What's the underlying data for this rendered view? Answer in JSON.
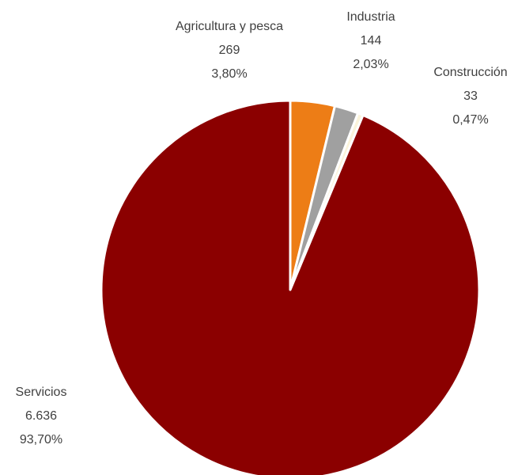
{
  "chart_data": {
    "type": "pie",
    "title": "",
    "start_angle": "12 o'clock, clockwise",
    "slices": [
      {
        "label": "Agricultura y pesca",
        "value": 269,
        "value_text": "269",
        "percent_text": "3,80%",
        "color": "#ED7D16"
      },
      {
        "label": "Industria",
        "value": 144,
        "value_text": "144",
        "percent_text": "2,03%",
        "color": "#A0A0A0"
      },
      {
        "label": "Construcción",
        "value": 33,
        "value_text": "33",
        "percent_text": "0,47%",
        "color": "#FAF3DA"
      },
      {
        "label": "Servicios",
        "value": 6636,
        "value_text": "6.636",
        "percent_text": "93,70%",
        "color": "#8B0000"
      }
    ],
    "slice_border_color": "#FFFFFF",
    "label_color": "#404040"
  }
}
